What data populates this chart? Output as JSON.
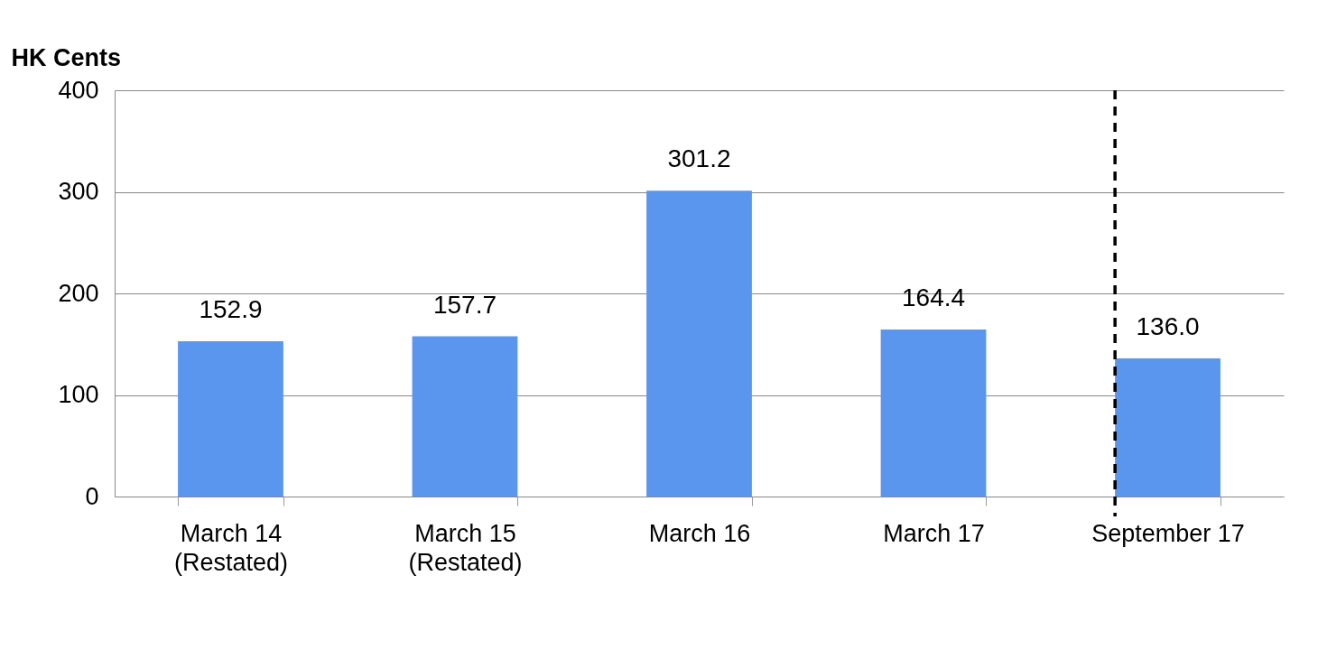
{
  "chart_data": {
    "type": "bar",
    "ylabel": "HK Cents",
    "categories": [
      "March 14\n(Restated)",
      "March 15\n(Restated)",
      "March 16",
      "March 17",
      "September 17"
    ],
    "values": [
      152.9,
      157.7,
      301.2,
      164.4,
      136.0
    ],
    "value_labels": [
      "152.9",
      "157.7",
      "301.2",
      "164.4",
      "136.0"
    ],
    "color": "#5a96ee",
    "ylim": [
      0,
      400
    ],
    "yticks": [
      0,
      100,
      200,
      300,
      400
    ],
    "grid": "y",
    "ref_lines": [
      {
        "axis": "x",
        "value": "September 17",
        "line_style": "dashed",
        "color": "#000000"
      }
    ]
  }
}
